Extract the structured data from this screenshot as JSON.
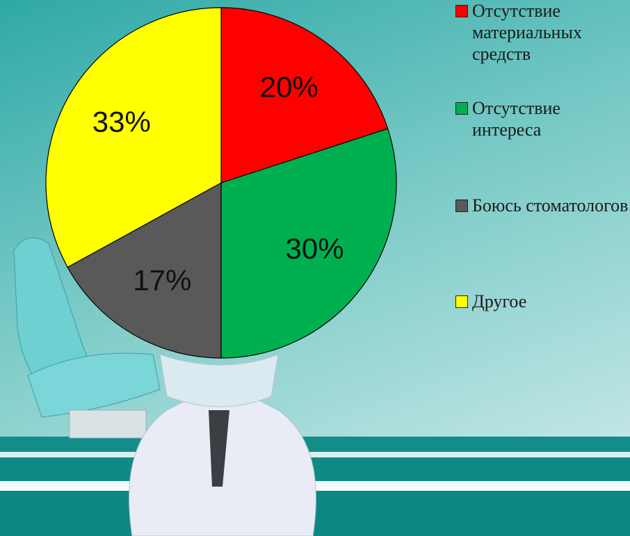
{
  "chart_data": {
    "type": "pie",
    "categories": [
      "Отсутствие материальных средств",
      "Отсутствие интереса",
      "Боюсь стоматологов",
      "Другое"
    ],
    "values": [
      20,
      30,
      17,
      33
    ],
    "value_labels": [
      "20%",
      "30%",
      "17%",
      "33%"
    ],
    "colors": [
      "#ff0000",
      "#00b050",
      "#595959",
      "#ffff00"
    ],
    "legend": "right"
  }
}
